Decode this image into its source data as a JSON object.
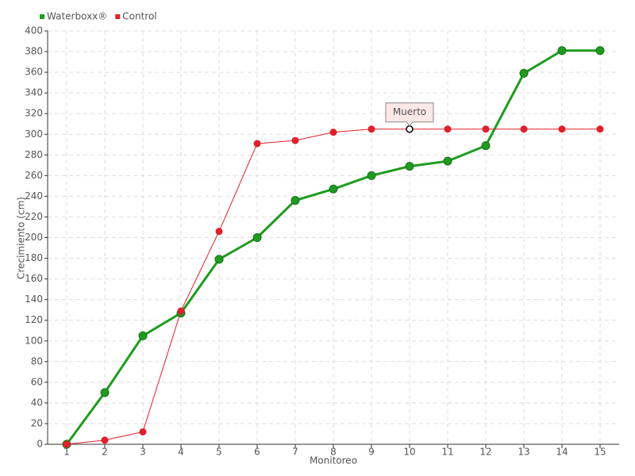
{
  "chart_data": {
    "type": "line",
    "x_label": "Monitoreo",
    "y_label": "Crecimiento (cm)",
    "x": [
      1,
      2,
      3,
      4,
      5,
      6,
      7,
      8,
      9,
      10,
      11,
      12,
      13,
      14,
      15
    ],
    "xlim": [
      0.5,
      15.5
    ],
    "xticks": [
      1,
      2,
      3,
      4,
      5,
      6,
      7,
      8,
      9,
      10,
      11,
      12,
      13,
      14,
      15
    ],
    "ylim": [
      0,
      400
    ],
    "yticks": [
      0,
      20,
      40,
      60,
      80,
      100,
      120,
      140,
      160,
      180,
      200,
      220,
      240,
      260,
      280,
      300,
      320,
      340,
      360,
      380,
      400
    ],
    "grid": true,
    "legend": "top-left",
    "series": [
      {
        "name": "Waterboxx®",
        "color": "#1f9c1f",
        "values": [
          0,
          50,
          105,
          127,
          179,
          200,
          236,
          247,
          260,
          269,
          274,
          289,
          359,
          381,
          381
        ]
      },
      {
        "name": "Control",
        "color": "#e0202a",
        "values": [
          0,
          4,
          12,
          129,
          206,
          291,
          294,
          302,
          305,
          305,
          305,
          305,
          305,
          305,
          305
        ],
        "point_labels": [
          null,
          null,
          null,
          null,
          null,
          null,
          null,
          null,
          null,
          "Muerto",
          null,
          null,
          null,
          null,
          null
        ]
      }
    ]
  }
}
